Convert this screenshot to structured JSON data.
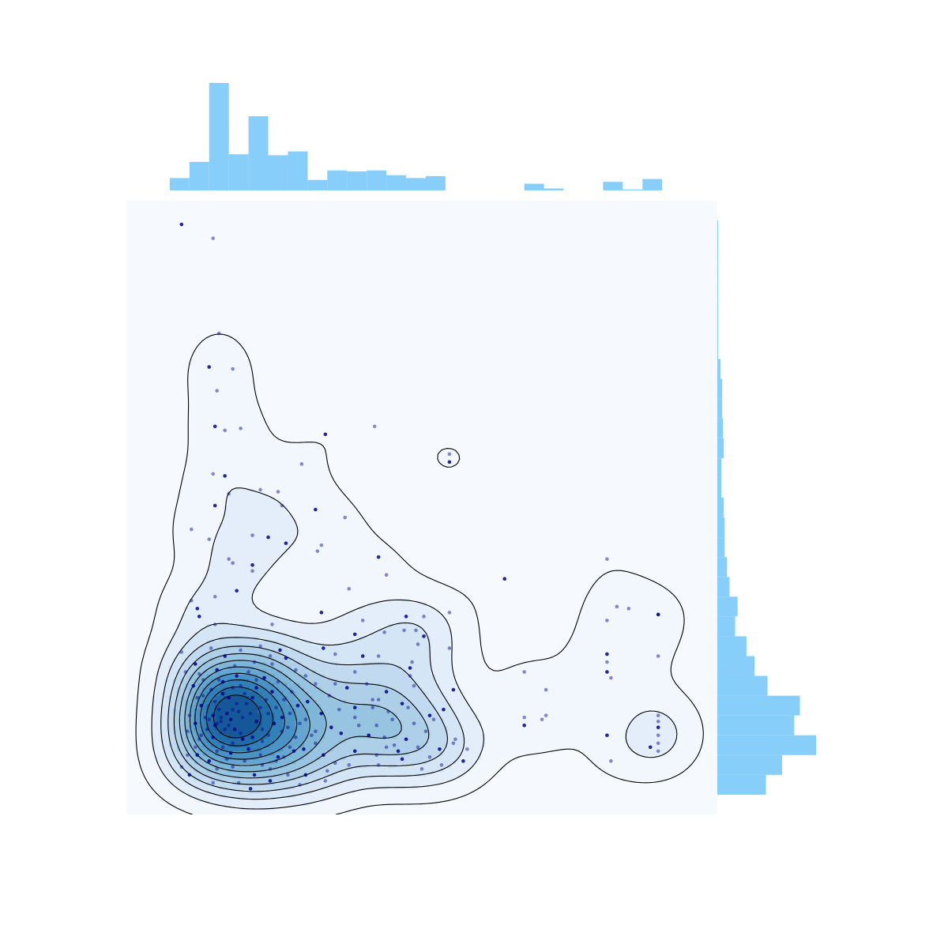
{
  "chart_data": {
    "type": "scatter",
    "subtype": "jointplot-kde-scatter-marginal-histograms",
    "title": "",
    "xlabel": "",
    "ylabel": "",
    "axes_visible": false,
    "xlim": [
      0,
      30
    ],
    "ylim": [
      0,
      31
    ],
    "colors": {
      "panel_bg": "#f6fafe",
      "hist": "#87cefa",
      "point": "#00008b",
      "contour_line": "#000000",
      "kde_fill": [
        "#f1f7fd",
        "#e3eefa",
        "#d4e6f6",
        "#c2daf0",
        "#aecfe8",
        "#97c4e0",
        "#7eb6d8",
        "#64a6cf",
        "#4a93c4",
        "#3280b8",
        "#1f6ca8",
        "#14589a"
      ]
    },
    "kde_density_peak": {
      "x": 5,
      "y": 4.6
    },
    "points": [
      [
        2.8,
        29.8
      ],
      [
        4.4,
        29.1
      ],
      [
        4.7,
        24.3
      ],
      [
        4.2,
        22.6
      ],
      [
        5.4,
        22.5
      ],
      [
        4.6,
        21.4
      ],
      [
        4.5,
        19.6
      ],
      [
        5.0,
        19.4
      ],
      [
        5.8,
        19.5
      ],
      [
        10.1,
        19.2
      ],
      [
        12.6,
        19.6
      ],
      [
        16.4,
        18.2
      ],
      [
        16.4,
        17.8
      ],
      [
        8.9,
        17.7
      ],
      [
        4.4,
        17.2
      ],
      [
        5.0,
        17.1
      ],
      [
        6.8,
        16.4
      ],
      [
        5.2,
        16.2
      ],
      [
        4.5,
        15.6
      ],
      [
        7.7,
        16.3
      ],
      [
        7.9,
        15.6
      ],
      [
        9.6,
        15.4
      ],
      [
        11.1,
        15.0
      ],
      [
        6.4,
        14.1
      ],
      [
        7.2,
        14.0
      ],
      [
        3.3,
        14.4
      ],
      [
        4.2,
        13.9
      ],
      [
        8.1,
        13.7
      ],
      [
        9.7,
        13.3
      ],
      [
        9.9,
        13.6
      ],
      [
        12.8,
        13.0
      ],
      [
        5.2,
        12.9
      ],
      [
        5.4,
        12.7
      ],
      [
        6.4,
        12.6
      ],
      [
        6.4,
        12.3
      ],
      [
        13.2,
        12.1
      ],
      [
        19.2,
        11.9
      ],
      [
        24.4,
        12.9
      ],
      [
        11.3,
        11.4
      ],
      [
        5.6,
        11.3
      ],
      [
        4.5,
        11.0
      ],
      [
        3.3,
        10.8
      ],
      [
        3.6,
        10.4
      ],
      [
        24.9,
        10.5
      ],
      [
        25.5,
        10.4
      ],
      [
        27.0,
        10.1
      ],
      [
        27.0,
        10.1
      ],
      [
        24.4,
        9.8
      ],
      [
        3.7,
        10.0
      ],
      [
        4.5,
        9.6
      ],
      [
        7.4,
        9.6
      ],
      [
        9.9,
        10.2
      ],
      [
        16.4,
        10.2
      ],
      [
        12.0,
        9.8
      ],
      [
        14.2,
        10.0
      ],
      [
        15.1,
        10.0
      ],
      [
        14.1,
        9.3
      ],
      [
        11.6,
        9.1
      ],
      [
        13.1,
        9.2
      ],
      [
        14.7,
        9.3
      ],
      [
        15.1,
        9.0
      ],
      [
        14.8,
        8.6
      ],
      [
        16.4,
        8.4
      ],
      [
        10.0,
        8.4
      ],
      [
        10.6,
        8.1
      ],
      [
        2.8,
        8.2
      ],
      [
        3.5,
        7.6
      ],
      [
        3.0,
        7.2
      ],
      [
        7.4,
        7.6
      ],
      [
        12.0,
        8.0
      ],
      [
        12.8,
        8.0
      ],
      [
        14.5,
        7.7
      ],
      [
        14.4,
        7.4
      ],
      [
        14.4,
        7.0
      ],
      [
        20.2,
        7.2
      ],
      [
        24.4,
        8.1
      ],
      [
        27.0,
        8.0
      ],
      [
        24.4,
        7.7
      ],
      [
        24.4,
        7.2
      ],
      [
        24.6,
        6.9
      ],
      [
        21.3,
        6.3
      ],
      [
        16.6,
        6.3
      ],
      [
        14.3,
        5.4
      ],
      [
        13.3,
        5.2
      ],
      [
        11.6,
        5.4
      ],
      [
        12.5,
        5.4
      ],
      [
        12.5,
        5.8
      ],
      [
        16.1,
        5.3
      ],
      [
        15.6,
        4.8
      ],
      [
        20.2,
        4.9
      ],
      [
        20.2,
        4.5
      ],
      [
        21.1,
        4.8
      ],
      [
        21.3,
        5.0
      ],
      [
        24.4,
        4.0
      ],
      [
        27.0,
        5.0
      ],
      [
        27.0,
        4.7
      ],
      [
        27.0,
        4.4
      ],
      [
        27.0,
        4.0
      ],
      [
        27.0,
        3.6
      ],
      [
        26.6,
        3.4
      ],
      [
        27.0,
        3.2
      ],
      [
        24.6,
        2.7
      ],
      [
        15.9,
        3.3
      ],
      [
        16.6,
        3.6
      ],
      [
        14.8,
        3.4
      ],
      [
        13.8,
        3.2
      ],
      [
        13.2,
        3.4
      ],
      [
        12.7,
        3.0
      ],
      [
        11.6,
        3.2
      ],
      [
        12.8,
        2.5
      ],
      [
        11.3,
        2.5
      ],
      [
        14.0,
        2.8
      ],
      [
        15.4,
        2.9
      ],
      [
        10.2,
        2.2
      ],
      [
        10.0,
        3.0
      ],
      [
        10.6,
        2.6
      ],
      [
        9.6,
        3.6
      ],
      [
        8.5,
        3.2
      ],
      [
        7.6,
        2.7
      ],
      [
        8.2,
        2.0
      ],
      [
        7.3,
        1.7
      ],
      [
        3.1,
        3.0
      ],
      [
        2.8,
        2.4
      ],
      [
        3.2,
        2.0
      ],
      [
        3.5,
        3.4
      ],
      [
        13.1,
        3.9
      ],
      [
        12.3,
        4.0
      ],
      [
        11.8,
        4.5
      ],
      [
        11.6,
        4.9
      ],
      [
        10.9,
        4.1
      ],
      [
        16.7,
        3.8
      ],
      [
        17.3,
        3.3
      ],
      [
        17.1,
        2.7
      ],
      [
        16.0,
        2.5
      ],
      [
        15.0,
        2.3
      ],
      [
        9.1,
        2.0
      ],
      [
        10.1,
        1.7
      ],
      [
        8.8,
        1.5
      ],
      [
        6.3,
        1.3
      ],
      [
        5.7,
        1.6
      ],
      [
        4.4,
        1.6
      ],
      [
        5.2,
        5.9
      ],
      [
        5.6,
        5.6
      ],
      [
        4.7,
        5.3
      ],
      [
        4.4,
        5.0
      ],
      [
        4.8,
        4.7
      ],
      [
        5.2,
        4.5
      ],
      [
        5.5,
        4.3
      ],
      [
        5.9,
        4.9
      ],
      [
        6.3,
        5.1
      ],
      [
        6.6,
        4.7
      ],
      [
        6.9,
        4.3
      ],
      [
        7.2,
        4.0
      ],
      [
        5.9,
        3.8
      ],
      [
        5.4,
        3.6
      ],
      [
        4.9,
        3.4
      ],
      [
        4.4,
        3.9
      ],
      [
        4.1,
        4.3
      ],
      [
        4.0,
        4.9
      ],
      [
        3.8,
        5.5
      ],
      [
        3.6,
        5.9
      ],
      [
        4.3,
        6.3
      ],
      [
        4.9,
        6.7
      ],
      [
        5.4,
        6.4
      ],
      [
        6.0,
        6.1
      ],
      [
        6.6,
        6.4
      ],
      [
        7.1,
        5.8
      ],
      [
        7.6,
        5.4
      ],
      [
        7.9,
        4.9
      ],
      [
        8.2,
        4.4
      ],
      [
        8.6,
        3.9
      ],
      [
        6.2,
        3.3
      ],
      [
        6.8,
        3.0
      ],
      [
        5.1,
        2.8
      ],
      [
        4.2,
        2.7
      ],
      [
        3.7,
        3.8
      ],
      [
        3.9,
        6.8
      ],
      [
        4.6,
        7.3
      ],
      [
        5.5,
        7.5
      ],
      [
        6.2,
        7.2
      ],
      [
        7.0,
        6.9
      ],
      [
        7.7,
        6.7
      ],
      [
        8.4,
        6.2
      ],
      [
        8.7,
        5.5
      ],
      [
        9.1,
        4.8
      ],
      [
        9.6,
        4.2
      ],
      [
        9.9,
        5.1
      ],
      [
        10.3,
        6.0
      ],
      [
        8.6,
        7.3
      ],
      [
        7.8,
        8.3
      ],
      [
        6.8,
        8.5
      ],
      [
        5.8,
        8.3
      ],
      [
        5.0,
        8.0
      ],
      [
        4.3,
        8.4
      ],
      [
        3.7,
        7.1
      ],
      [
        3.4,
        6.5
      ],
      [
        3.2,
        5.0
      ],
      [
        3.1,
        4.2
      ],
      [
        3.6,
        3.0
      ],
      [
        4.6,
        2.3
      ],
      [
        5.4,
        2.4
      ],
      [
        6.5,
        2.0
      ],
      [
        7.3,
        2.3
      ],
      [
        8.0,
        2.9
      ],
      [
        9.0,
        3.3
      ],
      [
        9.4,
        4.0
      ],
      [
        4.8,
        4.9
      ],
      [
        5.1,
        5.1
      ],
      [
        5.4,
        5.3
      ],
      [
        4.6,
        4.6
      ],
      [
        5.3,
        4.8
      ],
      [
        5.7,
        5.2
      ],
      [
        6.1,
        5.6
      ],
      [
        6.4,
        5.9
      ],
      [
        6.8,
        5.4
      ],
      [
        7.2,
        5.1
      ],
      [
        7.5,
        4.6
      ],
      [
        7.9,
        4.2
      ],
      [
        6.9,
        3.7
      ],
      [
        6.4,
        3.9
      ],
      [
        5.8,
        4.1
      ],
      [
        5.0,
        4.3
      ],
      [
        4.5,
        4.5
      ],
      [
        4.2,
        4.8
      ],
      [
        4.5,
        5.7
      ],
      [
        4.9,
        6.1
      ],
      [
        5.8,
        6.5
      ],
      [
        6.6,
        6.8
      ],
      [
        7.4,
        6.2
      ],
      [
        8.0,
        5.8
      ],
      [
        8.3,
        5.1
      ],
      [
        9.2,
        5.7
      ],
      [
        9.6,
        6.6
      ],
      [
        9.1,
        7.0
      ],
      [
        8.1,
        7.9
      ],
      [
        7.3,
        8.0
      ],
      [
        6.5,
        7.7
      ],
      [
        5.6,
        7.0
      ],
      [
        4.7,
        6.8
      ],
      [
        3.9,
        6.0
      ],
      [
        3.5,
        4.6
      ],
      [
        3.8,
        4.0
      ],
      [
        4.6,
        3.2
      ],
      [
        5.3,
        3.1
      ],
      [
        6.0,
        2.7
      ],
      [
        6.9,
        2.5
      ],
      [
        7.7,
        2.9
      ],
      [
        8.3,
        3.4
      ],
      [
        8.8,
        4.6
      ],
      [
        10.4,
        4.4
      ],
      [
        10.8,
        5.3
      ],
      [
        10.6,
        6.6
      ],
      [
        11.2,
        6.4
      ],
      [
        11.6,
        7.2
      ],
      [
        12.2,
        6.6
      ],
      [
        13.2,
        6.2
      ],
      [
        12.8,
        5.8
      ],
      [
        14.6,
        6.5
      ],
      [
        14.0,
        5.6
      ],
      [
        13.5,
        4.8
      ],
      [
        12.7,
        4.5
      ],
      [
        15.4,
        5.0
      ],
      [
        15.2,
        4.2
      ],
      [
        14.6,
        4.6
      ],
      [
        14.2,
        3.8
      ],
      [
        13.6,
        3.5
      ]
    ],
    "hist_x": {
      "bin_edges": [
        2.2,
        3.2,
        4.2,
        5.2,
        6.2,
        7.2,
        8.2,
        9.2,
        10.2,
        11.2,
        12.2,
        13.2,
        14.2,
        15.2,
        16.2,
        17.2,
        18.2,
        19.2,
        20.2,
        21.2,
        22.2,
        23.2,
        24.2,
        25.2,
        26.2,
        27.2
      ],
      "counts": [
        13,
        30,
        113,
        38,
        78,
        37,
        41,
        11,
        21,
        20,
        21,
        16,
        13,
        15,
        0,
        0,
        0,
        0,
        7,
        2,
        0,
        0,
        9,
        1,
        12
      ]
    },
    "hist_y": {
      "bin_edges": [
        1,
        2,
        3,
        4,
        5,
        6,
        7,
        8,
        9,
        10,
        11,
        12,
        13,
        14,
        15,
        16,
        17,
        18,
        19,
        20,
        21,
        22,
        23,
        24,
        25,
        26,
        27,
        28,
        29,
        30
      ],
      "counts": [
        60,
        80,
        122,
        95,
        102,
        62,
        46,
        36,
        22,
        25,
        15,
        12,
        9,
        9,
        8,
        5,
        5,
        8,
        7,
        6,
        6,
        4,
        1,
        1,
        1,
        1,
        1,
        1,
        1,
        2
      ]
    }
  }
}
